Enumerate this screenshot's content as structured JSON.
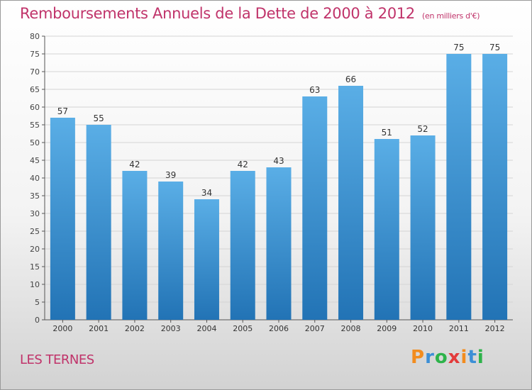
{
  "title": "Remboursements Annuels de la Dette de 2000 à 2012",
  "unit": "(en milliers d'€)",
  "commune": "LES TERNES",
  "logo": {
    "letters": [
      "P",
      "r",
      "o",
      "x",
      "i",
      "t",
      "i"
    ],
    "colors": [
      "#f28c1e",
      "#3c8fd6",
      "#2db34a",
      "#e33b3b",
      "#f28c1e",
      "#3c8fd6",
      "#2db34a"
    ]
  },
  "colors": {
    "bar_light": "#5aaee6",
    "bar_dark": "#2273b5",
    "title": "#c0336a"
  },
  "chart_data": {
    "type": "bar",
    "title": "Remboursements Annuels de la Dette de 2000 à 2012",
    "xlabel": "",
    "ylabel": "",
    "categories": [
      "2000",
      "2001",
      "2002",
      "2003",
      "2004",
      "2005",
      "2006",
      "2007",
      "2008",
      "2009",
      "2010",
      "2011",
      "2012"
    ],
    "values": [
      57,
      55,
      42,
      39,
      34,
      42,
      43,
      63,
      66,
      51,
      52,
      75,
      75
    ],
    "ylim": [
      0,
      80
    ],
    "yticks": [
      0,
      5,
      10,
      15,
      20,
      25,
      30,
      35,
      40,
      45,
      50,
      55,
      60,
      65,
      70,
      75,
      80
    ],
    "grid": true
  }
}
